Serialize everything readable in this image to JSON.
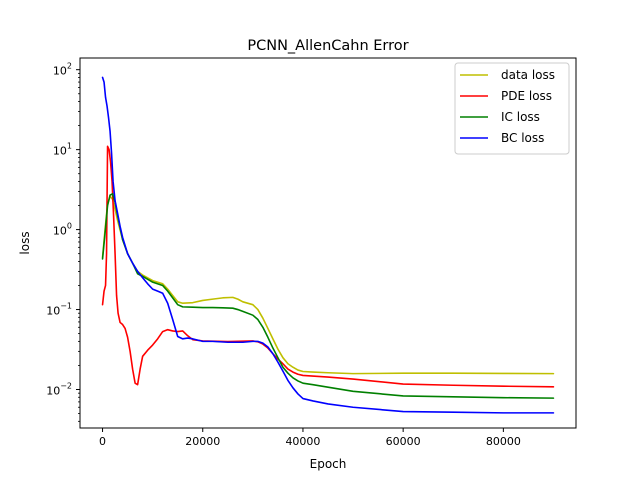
{
  "chart_data": {
    "type": "line",
    "title": "PCNN_AllenCahn Error",
    "xlabel": "Epoch",
    "ylabel": "loss",
    "xlim": [
      -4500,
      94500
    ],
    "ylim": [
      0.0033,
      140
    ],
    "yscale": "log",
    "grid": false,
    "legend_position": "top-right",
    "x_ticks": [
      0,
      20000,
      40000,
      60000,
      80000
    ],
    "x_tick_labels": [
      "0",
      "20000",
      "40000",
      "60000",
      "80000"
    ],
    "y_ticks": [
      0.01,
      0.1,
      1,
      10,
      100
    ],
    "y_tick_labels": [
      "10",
      "10",
      "10",
      "10",
      "10"
    ],
    "y_tick_exponents": [
      "−2",
      "−1",
      "0",
      "1",
      "2"
    ],
    "series": [
      {
        "name": "data loss",
        "color": "#bfbf00",
        "x": [
          0,
          500,
          1000,
          1500,
          2000,
          2500,
          3000,
          4000,
          5000,
          6000,
          7000,
          8000,
          10000,
          12000,
          13000,
          14000,
          15000,
          16000,
          18000,
          20000,
          22000,
          24000,
          26000,
          27000,
          28000,
          30000,
          31000,
          32000,
          33000,
          34000,
          35000,
          36000,
          37000,
          38000,
          39000,
          40000,
          42000,
          45000,
          50000,
          60000,
          70000,
          80000,
          90000
        ],
        "y": [
          0.45,
          1.0,
          2.1,
          2.6,
          2.4,
          1.8,
          1.3,
          0.75,
          0.5,
          0.38,
          0.3,
          0.27,
          0.23,
          0.21,
          0.18,
          0.15,
          0.125,
          0.12,
          0.122,
          0.13,
          0.135,
          0.14,
          0.142,
          0.135,
          0.125,
          0.115,
          0.1,
          0.078,
          0.058,
          0.043,
          0.032,
          0.025,
          0.021,
          0.019,
          0.0175,
          0.0168,
          0.0165,
          0.0162,
          0.0158,
          0.016,
          0.016,
          0.0159,
          0.0158
        ]
      },
      {
        "name": "PDE loss",
        "color": "#ff0000",
        "x": [
          0,
          300,
          600,
          800,
          1000,
          1300,
          1600,
          1900,
          2200,
          2500,
          2800,
          3100,
          3500,
          4000,
          4500,
          5000,
          5500,
          6000,
          6500,
          7000,
          7500,
          8000,
          9000,
          10000,
          11000,
          12000,
          13000,
          14000,
          15000,
          16000,
          17000,
          18000,
          20000,
          25000,
          30000,
          31000,
          32000,
          33000,
          34000,
          35000,
          36000,
          37000,
          38000,
          39000,
          40000,
          45000,
          50000,
          60000,
          70000,
          80000,
          90000
        ],
        "y": [
          0.115,
          0.17,
          0.2,
          0.5,
          11.0,
          10.0,
          7.0,
          4.0,
          1.5,
          0.5,
          0.15,
          0.09,
          0.069,
          0.065,
          0.058,
          0.045,
          0.03,
          0.018,
          0.012,
          0.0115,
          0.018,
          0.026,
          0.031,
          0.036,
          0.043,
          0.053,
          0.056,
          0.054,
          0.053,
          0.054,
          0.047,
          0.042,
          0.0405,
          0.0398,
          0.0405,
          0.0395,
          0.037,
          0.033,
          0.028,
          0.024,
          0.021,
          0.018,
          0.0165,
          0.0155,
          0.015,
          0.0143,
          0.0135,
          0.0117,
          0.0113,
          0.011,
          0.0108
        ]
      },
      {
        "name": "IC loss",
        "color": "#008000",
        "x": [
          0,
          500,
          1000,
          1500,
          2000,
          2500,
          3000,
          4000,
          5000,
          6000,
          7000,
          8000,
          10000,
          12000,
          13000,
          14000,
          15000,
          16000,
          18000,
          20000,
          22000,
          24000,
          26000,
          27000,
          28000,
          30000,
          31000,
          32000,
          33000,
          34000,
          35000,
          36000,
          37000,
          38000,
          39000,
          40000,
          42000,
          45000,
          50000,
          60000,
          70000,
          80000,
          90000
        ],
        "y": [
          0.43,
          0.9,
          2.0,
          2.7,
          2.8,
          2.2,
          1.5,
          0.75,
          0.5,
          0.38,
          0.28,
          0.26,
          0.22,
          0.2,
          0.17,
          0.14,
          0.115,
          0.108,
          0.107,
          0.106,
          0.106,
          0.105,
          0.104,
          0.1,
          0.095,
          0.085,
          0.075,
          0.06,
          0.045,
          0.033,
          0.025,
          0.019,
          0.016,
          0.014,
          0.0128,
          0.012,
          0.0115,
          0.0107,
          0.0095,
          0.0083,
          0.0081,
          0.0079,
          0.0078
        ]
      },
      {
        "name": "BC loss",
        "color": "#0000ff",
        "x": [
          0,
          300,
          600,
          900,
          1200,
          1500,
          1800,
          2100,
          2500,
          3000,
          3500,
          4000,
          5000,
          6000,
          7000,
          8000,
          9000,
          10000,
          11000,
          12000,
          13000,
          14000,
          15000,
          16000,
          17000,
          18000,
          20000,
          22000,
          25000,
          28000,
          30000,
          31000,
          32000,
          33000,
          34000,
          35000,
          36000,
          37000,
          38000,
          39000,
          40000,
          42000,
          45000,
          50000,
          60000,
          70000,
          80000,
          90000
        ],
        "y": [
          80,
          70,
          45,
          35,
          25,
          17,
          9,
          4,
          2.3,
          1.6,
          1.1,
          0.8,
          0.5,
          0.38,
          0.3,
          0.25,
          0.21,
          0.18,
          0.17,
          0.16,
          0.12,
          0.075,
          0.046,
          0.043,
          0.044,
          0.043,
          0.04,
          0.04,
          0.039,
          0.039,
          0.04,
          0.04,
          0.038,
          0.034,
          0.028,
          0.022,
          0.017,
          0.013,
          0.0105,
          0.0088,
          0.0077,
          0.0072,
          0.0066,
          0.006,
          0.0053,
          0.0052,
          0.0051,
          0.0051
        ]
      }
    ]
  }
}
